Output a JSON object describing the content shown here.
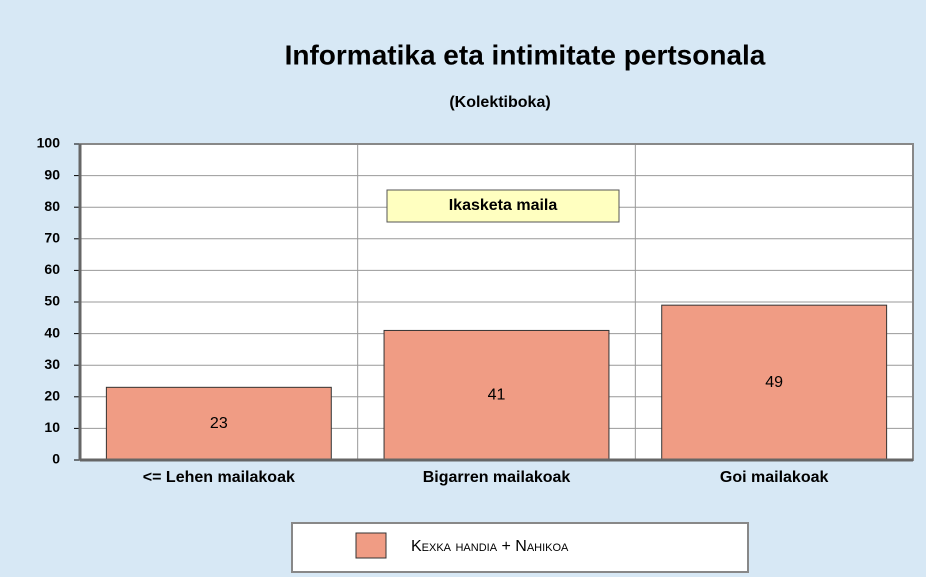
{
  "chart_data": {
    "type": "bar",
    "title": "Informatika eta intimitate pertsonala",
    "subtitle": "(Kolektiboka)",
    "annotation": "Ikasketa maila",
    "categories": [
      "<= Lehen mailakoak",
      "Bigarren mailakoak",
      "Goi mailakoak"
    ],
    "series": [
      {
        "name": "Kexka handia + Nahikoa",
        "color": "#f09c84",
        "values": [
          23,
          41,
          49
        ]
      }
    ],
    "ylim": [
      0,
      100
    ],
    "yticks": [
      0,
      10,
      20,
      30,
      40,
      50,
      60,
      70,
      80,
      90,
      100
    ],
    "grid": true,
    "legend": "bottom"
  }
}
